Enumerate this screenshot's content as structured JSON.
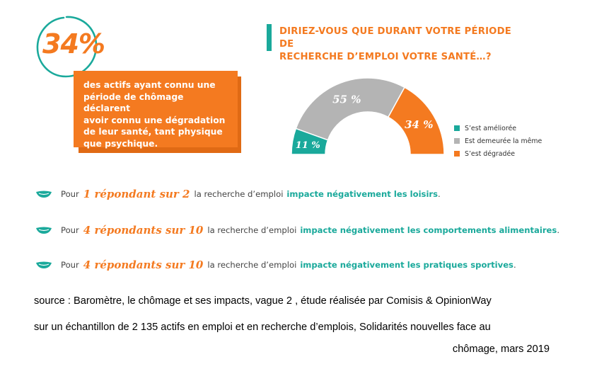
{
  "headline": {
    "percent": "34%",
    "box_lines": [
      "des actifs ayant connu une",
      "période de chômage déclarent",
      "avoir connu une dégradation",
      "de leur santé, tant physique",
      "que psychique."
    ]
  },
  "question": {
    "line1": "DIRIEZ-VOUS QUE DURANT VOTRE PÉRIODE DE",
    "line2": "RECHERCHE D’EMPLOI VOTRE SANTÉ…?"
  },
  "chart_data": {
    "type": "pie",
    "style": "half-donut",
    "title": "DIRIEZ-VOUS QUE DURANT VOTRE PÉRIODE DE RECHERCHE D’EMPLOI VOTRE SANTÉ…?",
    "categories": [
      "S’est améliorée",
      "Est demeurée la même",
      "S’est dégradée"
    ],
    "values": [
      11,
      55,
      34
    ],
    "labels": [
      "11 %",
      "55 %",
      "34 %"
    ],
    "colors": [
      "#1aa99b",
      "#b4b4b4",
      "#f47a20"
    ],
    "legend_position": "right"
  },
  "stats": [
    {
      "intro": "Pour",
      "highlight": "1 répondant sur 2",
      "mid": "la recherche d’emploi",
      "bold": "impacte négativement les loisirs",
      "end": "."
    },
    {
      "intro": "Pour",
      "highlight": "4 répondants sur 10",
      "mid": "la recherche d’emploi",
      "bold": "impacte négativement les comportements alimentaires",
      "end": "."
    },
    {
      "intro": "Pour",
      "highlight": "4 répondants sur 10",
      "mid": "la recherche d’emploi",
      "bold": "impacte négativement les pratiques sportives",
      "end": "."
    }
  ],
  "source": {
    "line1": "source : Baromètre, le chômage et ses impacts, vague 2 , étude réalisée par Comisis & OpinionWay",
    "line2": "sur un échantillon de 2 135 actifs en emploi et en recherche d’emplois, Solidarités nouvelles face au",
    "line3": "chômage, mars 2019"
  },
  "colors": {
    "orange": "#f47a20",
    "teal": "#1aa99b",
    "grey": "#b4b4b4"
  },
  "icons": {
    "stat_bullet": "leaf-icon"
  }
}
